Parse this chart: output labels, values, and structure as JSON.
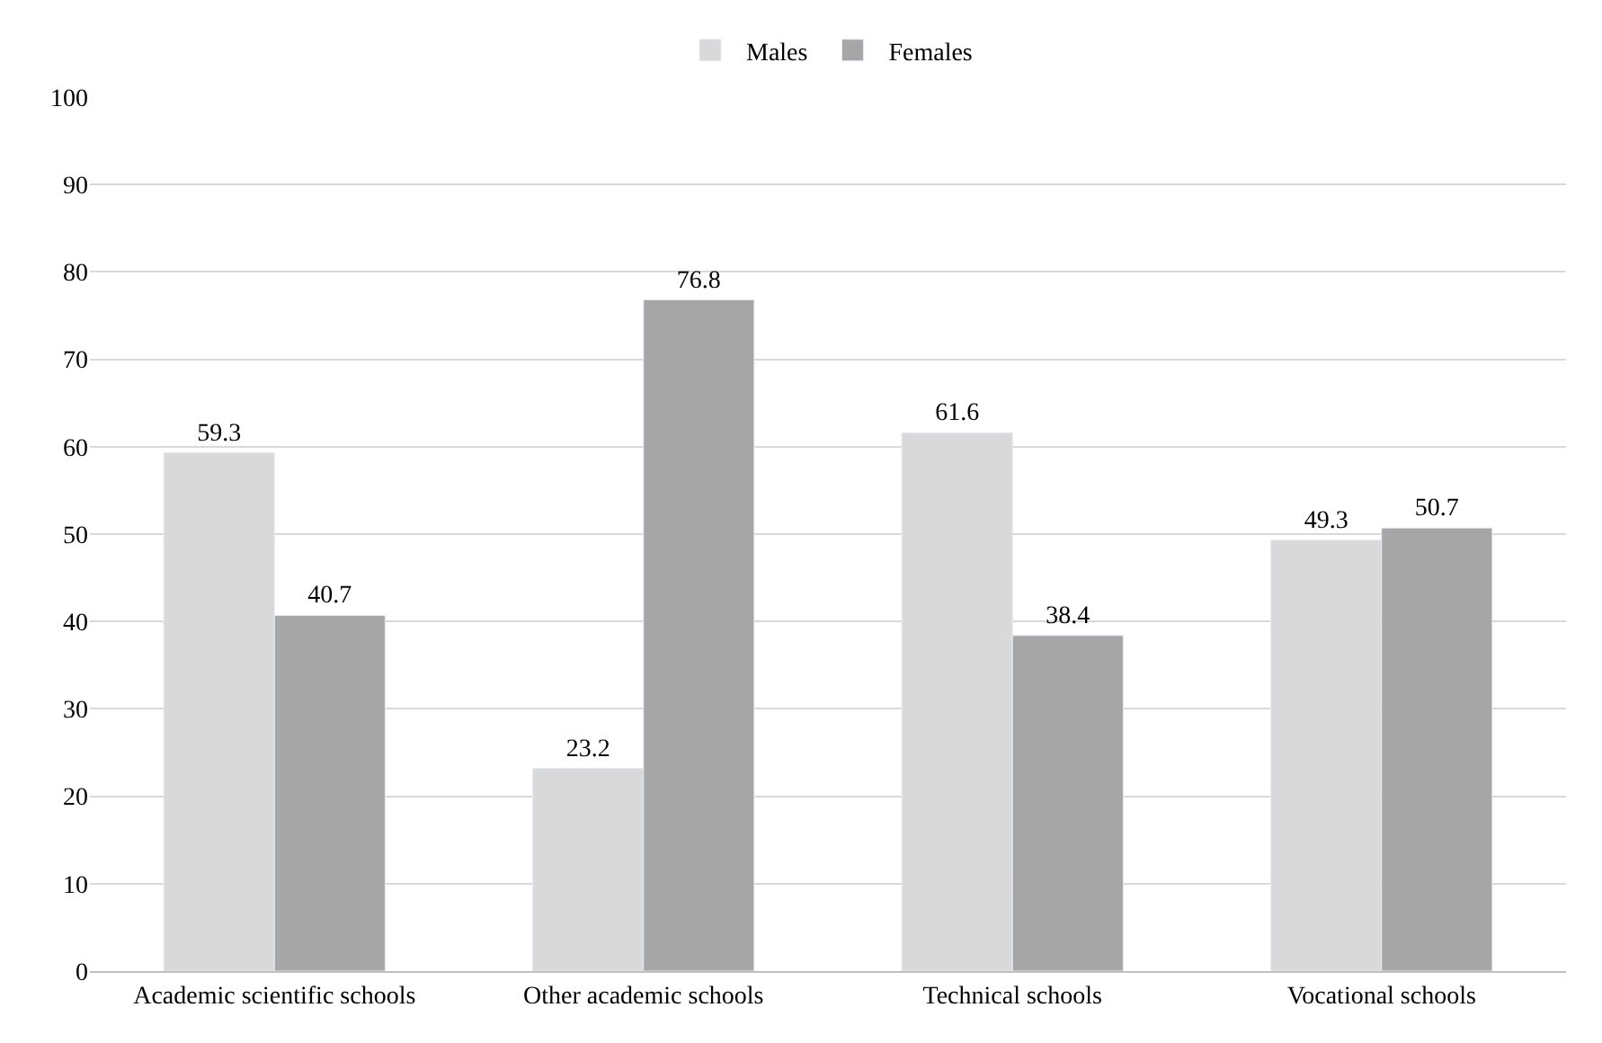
{
  "chart_data": {
    "type": "bar",
    "categories": [
      "Academic scientific schools",
      "Other academic schools",
      "Technical schools",
      "Vocational schools"
    ],
    "series": [
      {
        "name": "Males",
        "color": "#d9d9d9",
        "values": [
          59.3,
          23.2,
          61.6,
          49.3
        ]
      },
      {
        "name": "Females",
        "color": "#a6a6a6",
        "values": [
          40.7,
          76.8,
          38.4,
          50.7
        ]
      }
    ],
    "ylim": [
      0,
      100
    ],
    "yticks": [
      0,
      10,
      20,
      30,
      40,
      50,
      60,
      70,
      80,
      90,
      100
    ],
    "grid": "y",
    "legend": "top",
    "data_labels": true
  }
}
